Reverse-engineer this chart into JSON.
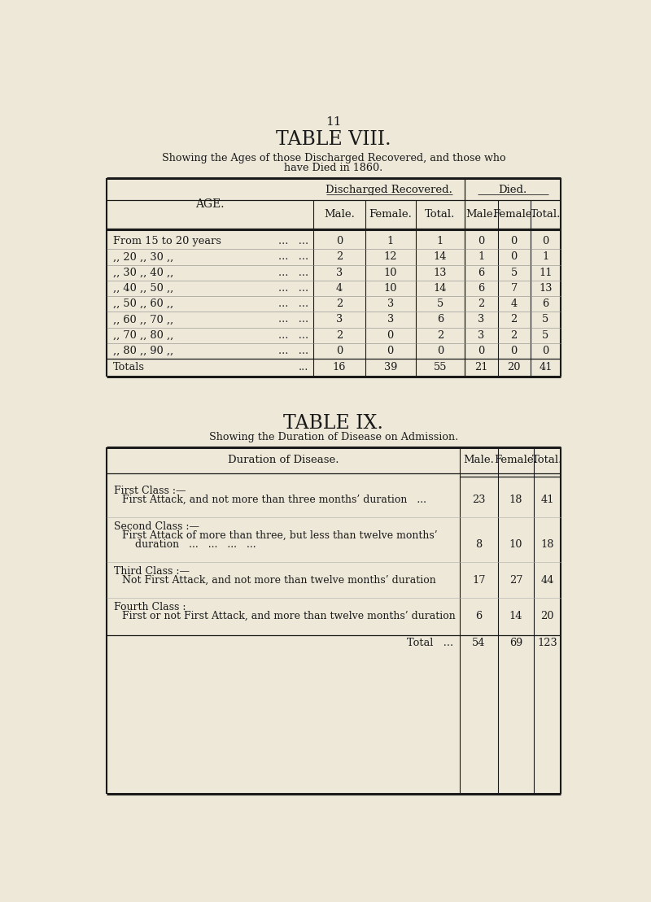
{
  "bg_color": "#ede8d8",
  "page_number": "11",
  "table8": {
    "title": "TABLE VIII.",
    "subtitle_line1": "Showing the Ages of those Discharged Recovered, and those who",
    "subtitle_line2": "have Died in 1860.",
    "age_col_header": "AGE.",
    "rows": [
      {
        "age": "From 15 to 20 years",
        "dr_m": "0",
        "dr_f": "1",
        "dr_t": "1",
        "d_m": "0",
        "d_f": "0",
        "d_t": "0"
      },
      {
        "age": ",, 20 ,, 30 ,,",
        "dr_m": "2",
        "dr_f": "12",
        "dr_t": "14",
        "d_m": "1",
        "d_f": "0",
        "d_t": "1"
      },
      {
        "age": ",, 30 ,, 40 ,,",
        "dr_m": "3",
        "dr_f": "10",
        "dr_t": "13",
        "d_m": "6",
        "d_f": "5",
        "d_t": "11"
      },
      {
        "age": ",, 40 ,, 50 ,,",
        "dr_m": "4",
        "dr_f": "10",
        "dr_t": "14",
        "d_m": "6",
        "d_f": "7",
        "d_t": "13"
      },
      {
        "age": ",, 50 ,, 60 ,,",
        "dr_m": "2",
        "dr_f": "3",
        "dr_t": "5",
        "d_m": "2",
        "d_f": "4",
        "d_t": "6"
      },
      {
        "age": ",, 60 ,, 70 ,,",
        "dr_m": "3",
        "dr_f": "3",
        "dr_t": "6",
        "d_m": "3",
        "d_f": "2",
        "d_t": "5"
      },
      {
        "age": ",, 70 ,, 80 ,,",
        "dr_m": "2",
        "dr_f": "0",
        "dr_t": "2",
        "d_m": "3",
        "d_f": "2",
        "d_t": "5"
      },
      {
        "age": ",, 80 ,, 90 ,,",
        "dr_m": "0",
        "dr_f": "0",
        "dr_t": "0",
        "d_m": "0",
        "d_f": "0",
        "d_t": "0"
      }
    ],
    "totals": {
      "dr_m": "16",
      "dr_f": "39",
      "dr_t": "55",
      "d_m": "21",
      "d_f": "20",
      "d_t": "41"
    }
  },
  "table9": {
    "title": "TABLE IX.",
    "subtitle": "Showing the Duration of Disease on Admission.",
    "rows": [
      {
        "class_header": "First Class :—",
        "desc1": "First Attack, and not more than three months’ duration   ...",
        "desc2": null,
        "male": "23",
        "female": "18",
        "total": "41"
      },
      {
        "class_header": "Second Class :—",
        "desc1": "First Attack of more than three, but less than twelve months’",
        "desc2": "     duration   ...   ...   ...   ...",
        "male": "8",
        "female": "10",
        "total": "18"
      },
      {
        "class_header": "Third Class :—",
        "desc1": "Not First Attack, and not more than twelve months’ duration",
        "desc2": null,
        "male": "17",
        "female": "27",
        "total": "44"
      },
      {
        "class_header": "Fourth Class :",
        "desc1": "First or not First Attack, and more than twelve months’ duration",
        "desc2": null,
        "male": "6",
        "female": "14",
        "total": "20"
      }
    ],
    "total_row": {
      "male": "54",
      "female": "69",
      "total": "123"
    }
  }
}
